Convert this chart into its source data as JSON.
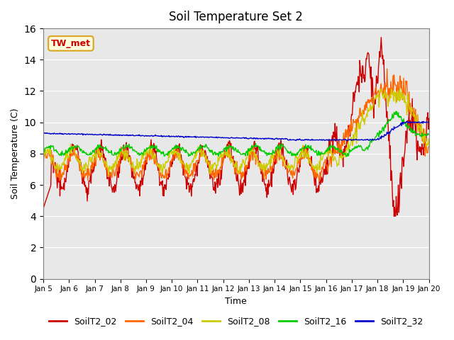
{
  "title": "Soil Temperature Set 2",
  "xlabel": "Time",
  "ylabel": "Soil Temperature (C)",
  "ylim": [
    0,
    16
  ],
  "yticks": [
    0,
    2,
    4,
    6,
    8,
    10,
    12,
    14,
    16
  ],
  "x_labels": [
    "Jan 5",
    "Jan 6",
    "Jan 7",
    "Jan 8",
    "Jan 9",
    "Jan 10",
    "Jan 11",
    "Jan 12",
    "Jan 13",
    "Jan 14",
    "Jan 15",
    "Jan 16",
    "Jan 17",
    "Jan 18",
    "Jan 19",
    "Jan 20"
  ],
  "series_colors": {
    "SoilT2_02": "#cc0000",
    "SoilT2_04": "#ff6600",
    "SoilT2_08": "#cccc00",
    "SoilT2_16": "#00cc00",
    "SoilT2_32": "#0000cc"
  },
  "annotation_text": "TW_met",
  "annotation_color": "#cc0000",
  "background_color": "#e8e8e8",
  "linewidth": 1.0,
  "n_days": 15
}
